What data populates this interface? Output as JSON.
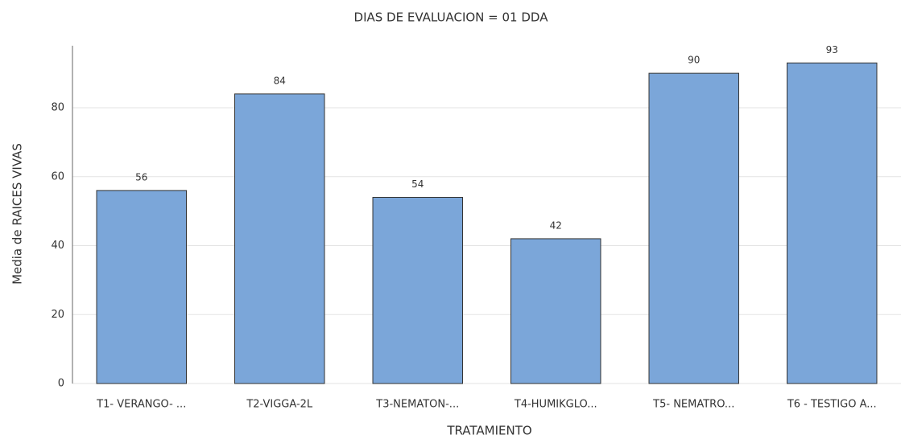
{
  "chart_data": {
    "type": "bar",
    "title": "DIAS DE EVALUACION = 01 DDA",
    "xlabel": "TRATAMIENTO",
    "ylabel": "Media de RAICES VIVAS",
    "categories": [
      "T1- VERANGO- ...",
      "T2-VIGGA-2L",
      "T3-NEMATON-...",
      "T4-HUMIKGLO...",
      "T5- NEMATRO...",
      "T6 - TESTIGO A..."
    ],
    "values": [
      56,
      84,
      54,
      42,
      90,
      93
    ],
    "color": "#7ba6d9",
    "ylim": [
      0,
      98
    ],
    "yticks": [
      0,
      20,
      40,
      60,
      80
    ],
    "grid": true
  }
}
